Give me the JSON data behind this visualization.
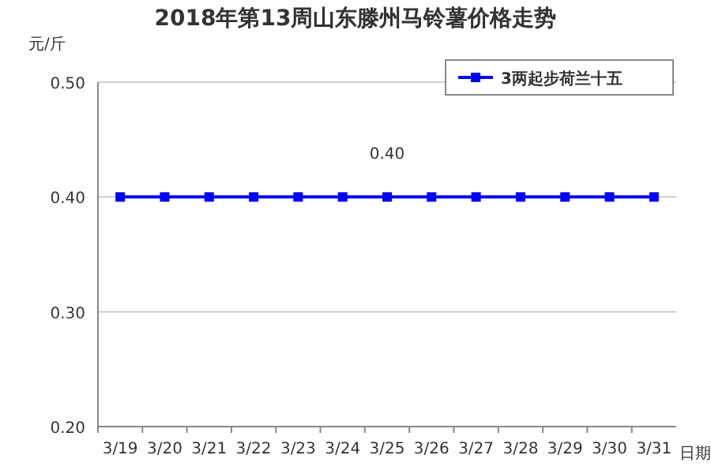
{
  "chart_data": {
    "type": "line",
    "title": "2018年第13周山东滕州马铃薯价格走势",
    "ylabel": "元/斤",
    "xlabel": "日期",
    "categories": [
      "3/19",
      "3/20",
      "3/21",
      "3/22",
      "3/23",
      "3/24",
      "3/25",
      "3/26",
      "3/27",
      "3/28",
      "3/29",
      "3/30",
      "3/31"
    ],
    "series": [
      {
        "name": "3两起步荷兰十五",
        "color": "#0000ff",
        "values": [
          0.4,
          0.4,
          0.4,
          0.4,
          0.4,
          0.4,
          0.4,
          0.4,
          0.4,
          0.4,
          0.4,
          0.4,
          0.4
        ],
        "value_labels": [
          null,
          null,
          null,
          null,
          null,
          null,
          "0.40",
          null,
          null,
          null,
          null,
          null,
          null
        ]
      }
    ],
    "ylim": [
      0.2,
      0.5
    ],
    "yticks": [
      {
        "value": 0.2,
        "label": "0.20"
      },
      {
        "value": 0.3,
        "label": "0.30"
      },
      {
        "value": 0.4,
        "label": "0.40"
      },
      {
        "value": 0.5,
        "label": "0.50"
      }
    ],
    "grid": "y",
    "legend": "top right",
    "marker": "square",
    "line_style": "solid"
  }
}
